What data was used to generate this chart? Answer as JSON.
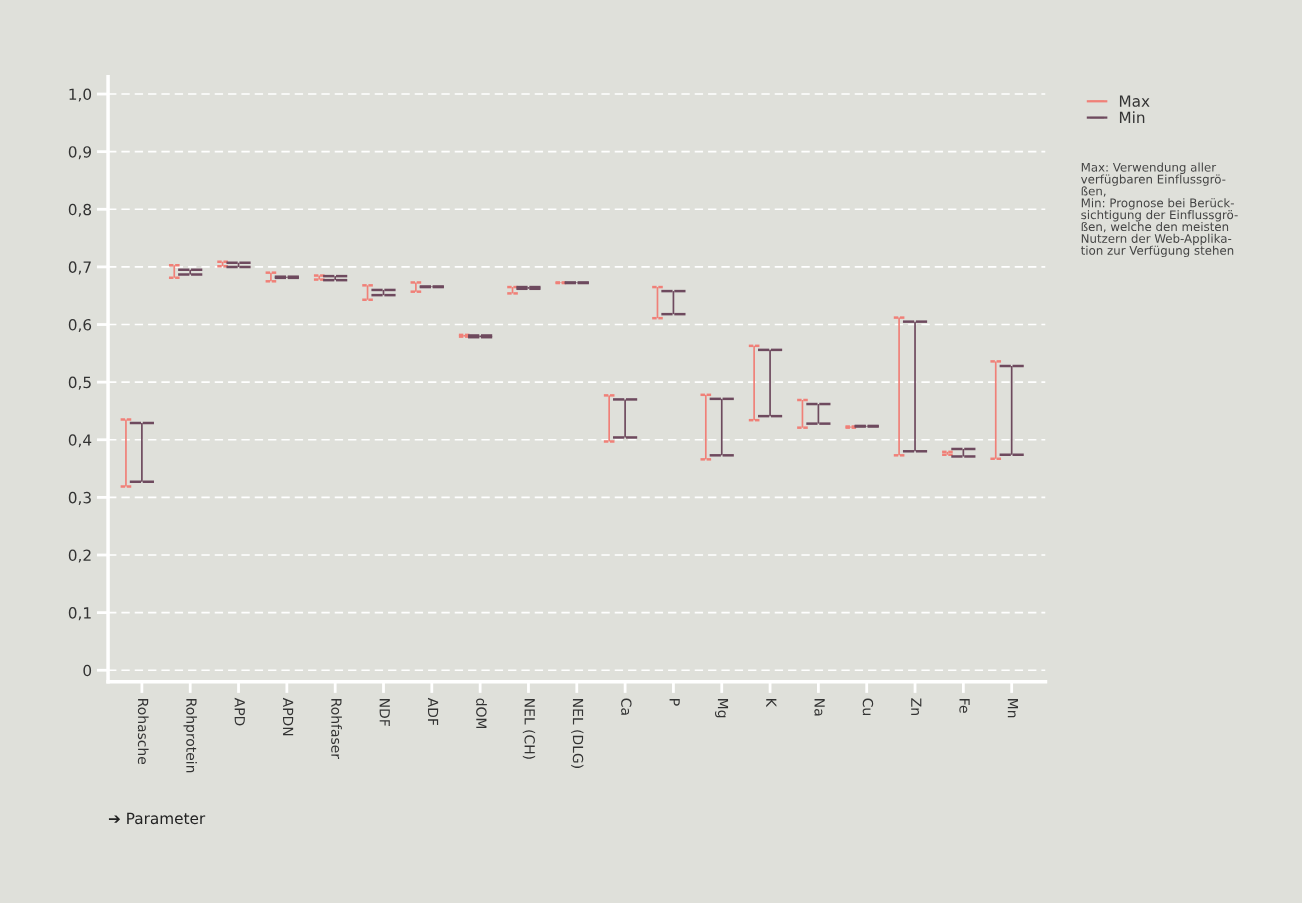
{
  "chart_data": {
    "type": "bar",
    "xlabel": "➔ Parameter",
    "categories": [
      "Rohasche",
      "Rohprotein",
      "APD",
      "APDN",
      "Rohfaser",
      "NDF",
      "ADF",
      "dOM",
      "NEL (CH)",
      "NEL (DLG)",
      "Ca",
      "P",
      "Mg",
      "K",
      "Na",
      "Cu",
      "Zn",
      "Fe",
      "Mn"
    ],
    "series": [
      {
        "name": "Max",
        "color": "#f08078",
        "base": [
          0.319,
          0.681,
          0.701,
          0.675,
          0.678,
          0.643,
          0.657,
          0.579,
          0.654,
          0.672,
          0.397,
          0.611,
          0.366,
          0.434,
          0.421,
          0.421,
          0.373,
          0.374,
          0.367
        ],
        "values": [
          0.116,
          0.022,
          0.008,
          0.015,
          0.007,
          0.025,
          0.016,
          0.003,
          0.011,
          0.001,
          0.08,
          0.054,
          0.112,
          0.129,
          0.048,
          0.002,
          0.239,
          0.005,
          0.169
        ]
      },
      {
        "name": "Min",
        "color": "#6e4a5e",
        "base": [
          0.327,
          0.687,
          0.7,
          0.681,
          0.677,
          0.651,
          0.665,
          0.578,
          0.662,
          0.672,
          0.404,
          0.618,
          0.373,
          0.441,
          0.428,
          0.423,
          0.38,
          0.371,
          0.374
        ],
        "values": [
          0.102,
          0.008,
          0.007,
          0.002,
          0.007,
          0.009,
          0.001,
          0.003,
          0.003,
          0.001,
          0.066,
          0.04,
          0.098,
          0.115,
          0.034,
          0.001,
          0.225,
          0.013,
          0.154
        ]
      }
    ],
    "ylim": [
      -0.02,
      1.03
    ],
    "yticks": [
      {
        "value": 0,
        "label": "0"
      },
      {
        "value": 0.1,
        "label": "0,1"
      },
      {
        "value": 0.2,
        "label": "0,2"
      },
      {
        "value": 0.3,
        "label": "0,3"
      },
      {
        "value": 0.4,
        "label": "0,4"
      },
      {
        "value": 0.5,
        "label": "0,5"
      },
      {
        "value": 0.6,
        "label": "0,6"
      },
      {
        "value": 0.7,
        "label": "0,7"
      },
      {
        "value": 0.8,
        "label": "0,8"
      },
      {
        "value": 0.9,
        "label": "0,9"
      },
      {
        "value": 1.0,
        "label": "1,0"
      }
    ],
    "grid": "y",
    "legend": "top right",
    "annotations": [
      "Max: Verwendung aller\nverfügbaren Einflussgrö-\nßen,\nMin: Prognose bei Berück-\nsichtigung der Einflussgrö-\nßen, welche den meisten\nNutzern der Web-Applika-\ntion zur Verfügung stehen"
    ]
  }
}
